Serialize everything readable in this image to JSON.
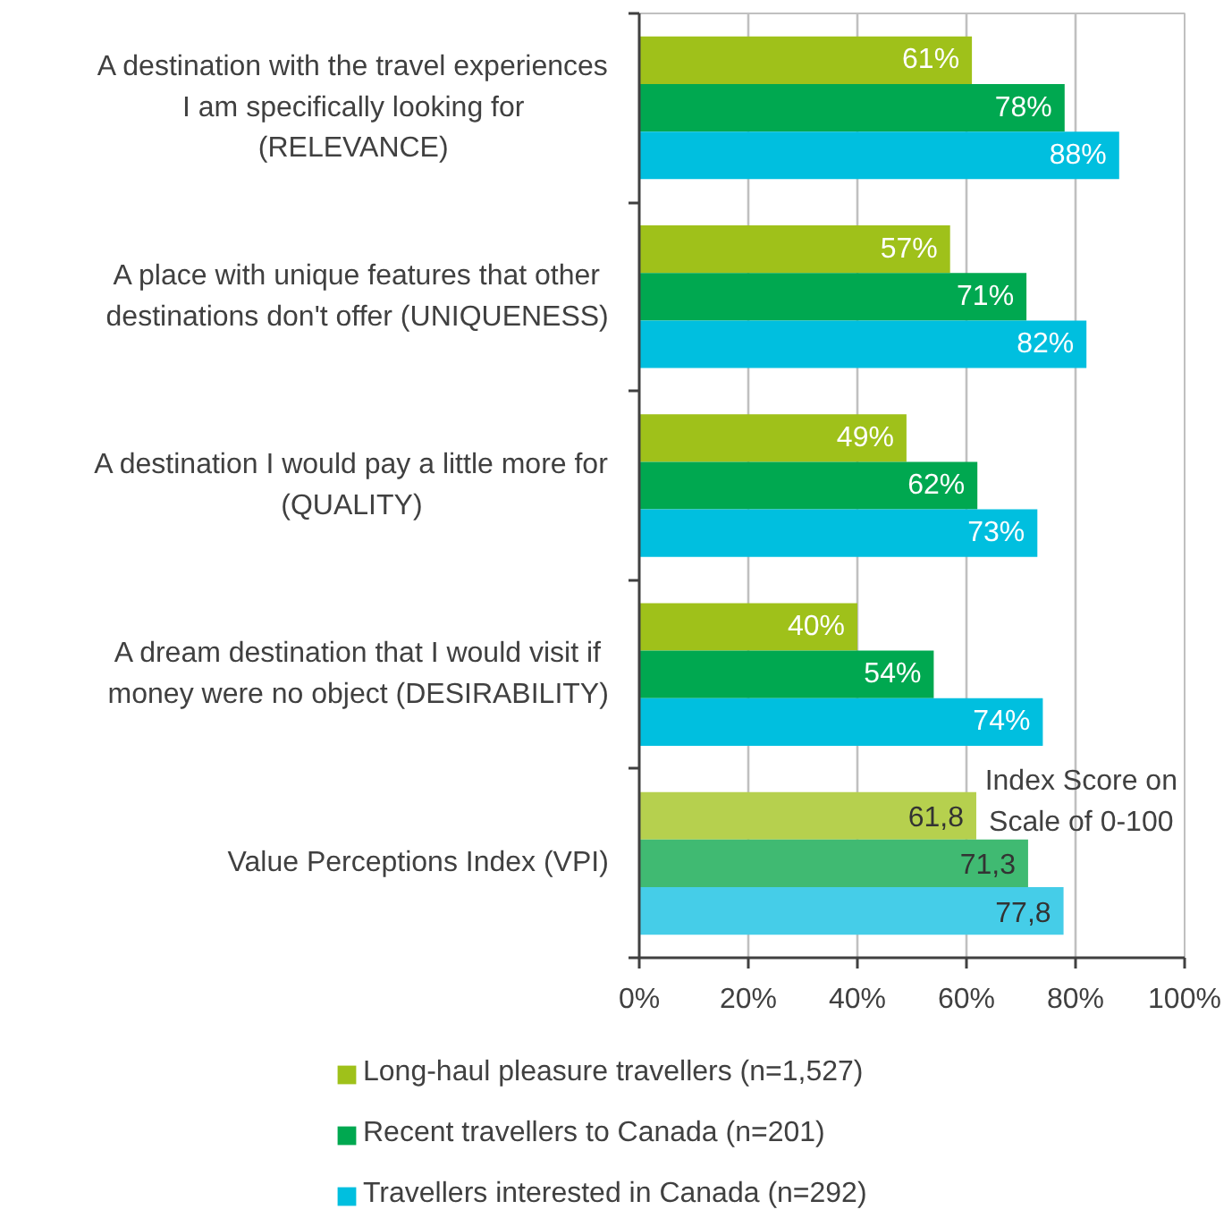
{
  "chart_data": {
    "type": "bar",
    "orientation": "horizontal",
    "categories": [
      "A destination with the travel experiences\nI am specifically looking for\n(RELEVANCE)",
      "A place with unique features that other\ndestinations don't offer (UNIQUENESS)",
      "A destination I would pay a little more for\n(QUALITY)",
      "A dream destination that I would visit if\nmoney were no object (DESIRABILITY)",
      "Value Perceptions Index (VPI)"
    ],
    "series": [
      {
        "name": "Long-haul pleasure travellers (n=1,527)",
        "colors": [
          "#9fc11a",
          "#9fc11a",
          "#9fc11a",
          "#9fc11a",
          "#b6d04e"
        ],
        "values": [
          61,
          57,
          49,
          40,
          61.8
        ],
        "value_labels": [
          "61%",
          "57%",
          "49%",
          "40%",
          "61,8"
        ]
      },
      {
        "name": "Recent travellers to Canada (n=201)",
        "colors": [
          "#00a850",
          "#00a850",
          "#00a850",
          "#00a850",
          "#40ba72"
        ],
        "values": [
          78,
          71,
          62,
          54,
          71.3
        ],
        "value_labels": [
          "78%",
          "71%",
          "62%",
          "54%",
          "71,3"
        ]
      },
      {
        "name": "Travellers interested in Canada (n=292)",
        "colors": [
          "#00bfdf",
          "#00bfdf",
          "#00bfdf",
          "#00bfdf",
          "#45cde8"
        ],
        "values": [
          88,
          82,
          73,
          74,
          77.8
        ],
        "value_labels": [
          "88%",
          "82%",
          "73%",
          "74%",
          "77,8"
        ]
      }
    ],
    "xlim": [
      0,
      100
    ],
    "xticks": [
      {
        "value": 0,
        "label": "0%"
      },
      {
        "value": 20,
        "label": "20%"
      },
      {
        "value": 40,
        "label": "40%"
      },
      {
        "value": 60,
        "label": "60%"
      },
      {
        "value": 80,
        "label": "80%"
      },
      {
        "value": 100,
        "label": "100%"
      }
    ],
    "grid": "x",
    "legend": "bottom",
    "annotations": [
      "Index Score on\nScale of 0-100"
    ]
  }
}
